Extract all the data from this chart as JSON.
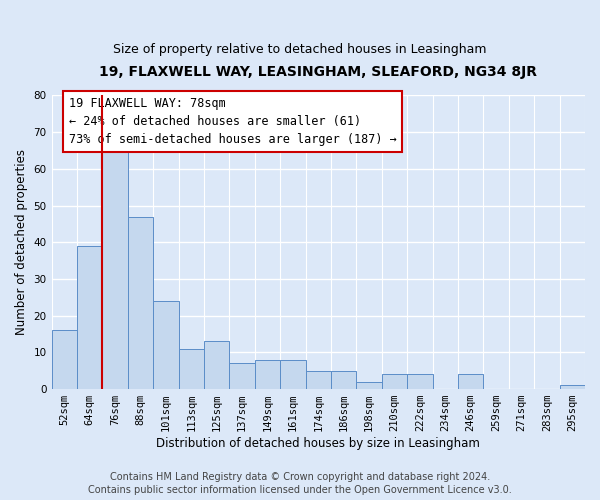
{
  "title_line1": "19, FLAXWELL WAY, LEASINGHAM, SLEAFORD, NG34 8JR",
  "title_line2": "Size of property relative to detached houses in Leasingham",
  "xlabel": "Distribution of detached houses by size in Leasingham",
  "ylabel": "Number of detached properties",
  "categories": [
    "52sqm",
    "64sqm",
    "76sqm",
    "88sqm",
    "101sqm",
    "113sqm",
    "125sqm",
    "137sqm",
    "149sqm",
    "161sqm",
    "174sqm",
    "186sqm",
    "198sqm",
    "210sqm",
    "222sqm",
    "234sqm",
    "246sqm",
    "259sqm",
    "271sqm",
    "283sqm",
    "295sqm"
  ],
  "values": [
    16,
    39,
    66,
    47,
    24,
    11,
    13,
    7,
    8,
    8,
    5,
    5,
    2,
    4,
    4,
    0,
    4,
    0,
    0,
    0,
    1
  ],
  "bar_color": "#c5d8ee",
  "bar_edge_color": "#5b8dc8",
  "highlight_index": 2,
  "highlight_line_color": "#cc0000",
  "ylim": [
    0,
    80
  ],
  "yticks": [
    0,
    10,
    20,
    30,
    40,
    50,
    60,
    70,
    80
  ],
  "annotation_line1": "19 FLAXWELL WAY: 78sqm",
  "annotation_line2": "← 24% of detached houses are smaller (61)",
  "annotation_line3": "73% of semi-detached houses are larger (187) →",
  "annotation_box_color": "#ffffff",
  "annotation_box_edge_color": "#cc0000",
  "footer_line1": "Contains HM Land Registry data © Crown copyright and database right 2024.",
  "footer_line2": "Contains public sector information licensed under the Open Government Licence v3.0.",
  "background_color": "#dce8f8",
  "plot_background_color": "#dce8f8",
  "grid_color": "#ffffff",
  "title1_fontsize": 10,
  "title2_fontsize": 9,
  "xlabel_fontsize": 8.5,
  "ylabel_fontsize": 8.5,
  "tick_fontsize": 7.5,
  "annotation_fontsize": 8.5,
  "footer_fontsize": 7
}
